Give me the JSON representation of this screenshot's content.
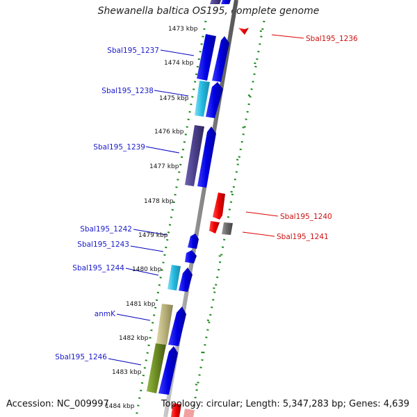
{
  "title": "Shewanella baltica OS195, complete genome",
  "accession": "Accession: NC_009997",
  "topology": "Topology: circular; Length: 5,347,283 bp; Genes: 4,639",
  "ticks": [
    {
      "label": "1473 kbp"
    },
    {
      "label": "1474 kbp"
    },
    {
      "label": "1475 kbp"
    },
    {
      "label": "1476 kbp"
    },
    {
      "label": "1477 kbp"
    },
    {
      "label": "1478 kbp"
    },
    {
      "label": "1479 kbp"
    },
    {
      "label": "1480 kbp"
    },
    {
      "label": "1481 kbp"
    },
    {
      "label": "1482 kbp"
    },
    {
      "label": "1483 kbp"
    },
    {
      "label": "1484 kbp"
    }
  ],
  "genes_left": [
    {
      "name": "Sbal195_1237",
      "color": "#1a1acc"
    },
    {
      "name": "Sbal195_1238",
      "color": "#1a1acc"
    },
    {
      "name": "Sbal195_1239",
      "color": "#1a1acc"
    },
    {
      "name": "Sbal195_1242",
      "color": "#1a1acc"
    },
    {
      "name": "Sbal195_1243",
      "color": "#1a1acc"
    },
    {
      "name": "Sbal195_1244",
      "color": "#1a1acc"
    },
    {
      "name": "anmK",
      "color": "#1a1acc"
    },
    {
      "name": "Sbal195_1246",
      "color": "#1a1acc"
    }
  ],
  "genes_right": [
    {
      "name": "Sbal195_1236",
      "color": "#cc1111"
    },
    {
      "name": "Sbal195_1240",
      "color": "#cc1111"
    },
    {
      "name": "Sbal195_1241",
      "color": "#cc1111"
    }
  ],
  "colors": {
    "forward_cds": "#0000ee",
    "reverse_cds": "#ee0000",
    "backbone": "#8a8a8a",
    "tick_dots": "#1f8a1f",
    "cyan_feature": "#22b8e0",
    "purple_feature": "#4a3f8a",
    "khaki_feature": "#b8b07a",
    "olive_feature": "#6b8a22",
    "grey_feature": "#666666"
  }
}
